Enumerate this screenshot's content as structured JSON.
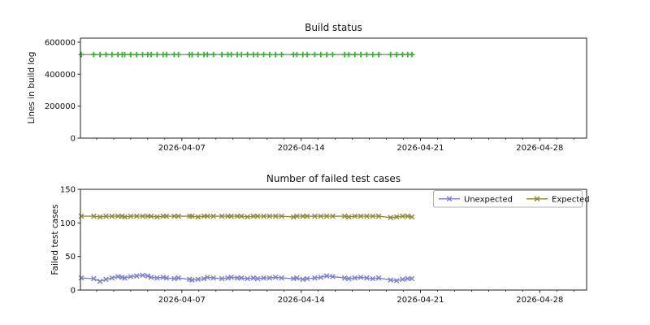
{
  "figure": {
    "background": "#ffffff",
    "frame_color": "#222222",
    "tick_color": "#222222",
    "text_color": "#111111"
  },
  "chart_data": [
    {
      "id": "build-status",
      "type": "line",
      "title": "Build status",
      "xlabel": "",
      "ylabel": "Lines in build log",
      "grid": false,
      "ylim": [
        0,
        625000
      ],
      "yticks": [
        0,
        200000,
        400000,
        600000
      ],
      "ytick_labels": [
        "0",
        "200000",
        "400000",
        "600000"
      ],
      "xlim_days": [
        0,
        29.7
      ],
      "xticks": [
        {
          "pos": 5.95,
          "label": "2026-04-07"
        },
        {
          "pos": 12.95,
          "label": "2026-04-14"
        },
        {
          "pos": 19.95,
          "label": "2026-04-21"
        },
        {
          "pos": 26.95,
          "label": "2026-04-28"
        }
      ],
      "xminor": {
        "start": 0.95,
        "step": 1,
        "end": 28.95
      },
      "legend": null,
      "x_days": [
        0.05,
        0.78,
        1.15,
        1.5,
        1.85,
        2.2,
        2.45,
        2.6,
        2.95,
        3.3,
        3.65,
        3.95,
        4.15,
        4.5,
        4.85,
        5.05,
        5.5,
        5.75,
        6.4,
        6.55,
        6.9,
        7.25,
        7.45,
        7.8,
        8.3,
        8.65,
        8.85,
        9.2,
        9.45,
        9.8,
        10.15,
        10.4,
        10.75,
        11.1,
        11.45,
        11.8,
        12.5,
        12.7,
        13.05,
        13.3,
        13.75,
        14.1,
        14.45,
        14.8,
        15.5,
        15.75,
        16.1,
        16.45,
        16.8,
        17.15,
        17.5,
        18.2,
        18.55,
        18.9,
        19.2,
        19.45
      ],
      "series": [
        {
          "name": "Lines in build log",
          "line_color": "#8c8c8c",
          "marker": "plus",
          "marker_color": "#33b333",
          "values": [
            522400,
            522600,
            522500,
            522700,
            522300,
            522600,
            522500,
            522400,
            522800,
            522600,
            522500,
            522700,
            522600,
            522400,
            522500,
            522600,
            522700,
            522500,
            522600,
            522400,
            522600,
            522500,
            522700,
            522600,
            522500,
            522800,
            522600,
            522500,
            522400,
            522600,
            522700,
            522500,
            522600,
            522400,
            522500,
            522600,
            522800,
            522600,
            522500,
            522700,
            522600,
            522500,
            522400,
            522600,
            522500,
            522700,
            522600,
            522500,
            522600,
            522400,
            522600,
            522500,
            522700,
            522600,
            522500,
            522600
          ]
        }
      ]
    },
    {
      "id": "failed-test-cases",
      "type": "line",
      "title": "Number of failed test cases",
      "xlabel": "",
      "ylabel": "Failed test cases",
      "grid": false,
      "ylim": [
        0,
        150
      ],
      "yticks": [
        0,
        50,
        100,
        150
      ],
      "ytick_labels": [
        "0",
        "50",
        "100",
        "150"
      ],
      "xlim_days": [
        0,
        29.7
      ],
      "xticks": [
        {
          "pos": 5.95,
          "label": "2026-04-07"
        },
        {
          "pos": 12.95,
          "label": "2026-04-14"
        },
        {
          "pos": 19.95,
          "label": "2026-04-21"
        },
        {
          "pos": 26.95,
          "label": "2026-04-28"
        }
      ],
      "xminor": {
        "start": 0.95,
        "step": 1,
        "end": 28.95
      },
      "legend": {
        "position": "upper-right",
        "entries": [
          "Unexpected",
          "Expected"
        ],
        "border_color": "#b0b0b0"
      },
      "x_days": [
        0.05,
        0.78,
        1.15,
        1.5,
        1.85,
        2.2,
        2.45,
        2.6,
        2.95,
        3.3,
        3.65,
        3.95,
        4.15,
        4.5,
        4.85,
        5.05,
        5.5,
        5.75,
        6.4,
        6.55,
        6.9,
        7.25,
        7.45,
        7.8,
        8.3,
        8.65,
        8.85,
        9.2,
        9.45,
        9.8,
        10.15,
        10.4,
        10.75,
        11.1,
        11.45,
        11.8,
        12.5,
        12.7,
        13.05,
        13.3,
        13.75,
        14.1,
        14.45,
        14.8,
        15.5,
        15.75,
        16.1,
        16.45,
        16.8,
        17.15,
        17.5,
        18.2,
        18.55,
        18.9,
        19.2,
        19.45
      ],
      "series": [
        {
          "name": "Unexpected",
          "line_color": "#8084d4",
          "marker": "x",
          "marker_color": "#8084d4",
          "values": [
            18,
            17,
            13,
            16,
            18,
            20,
            19,
            18,
            20,
            21,
            22,
            21,
            19,
            18,
            19,
            18,
            17,
            18,
            16,
            15,
            16,
            17,
            19,
            18,
            17,
            18,
            19,
            18,
            18,
            17,
            18,
            17,
            18,
            18,
            19,
            18,
            17,
            18,
            16,
            17,
            18,
            19,
            21,
            20,
            18,
            17,
            18,
            19,
            18,
            17,
            18,
            15,
            14,
            16,
            17,
            17
          ]
        },
        {
          "name": "Expected",
          "line_color": "#8d8d3c",
          "marker": "x",
          "marker_color": "#8d8d3c",
          "values": [
            110,
            110,
            109,
            110,
            110,
            110,
            110,
            109,
            110,
            110,
            110,
            110,
            110,
            109,
            110,
            110,
            110,
            110,
            110,
            110,
            109,
            110,
            110,
            110,
            110,
            110,
            110,
            110,
            110,
            109,
            110,
            110,
            110,
            110,
            110,
            110,
            109,
            110,
            110,
            110,
            110,
            110,
            110,
            110,
            110,
            109,
            110,
            110,
            110,
            110,
            110,
            108,
            109,
            110,
            110,
            109
          ]
        }
      ]
    }
  ]
}
